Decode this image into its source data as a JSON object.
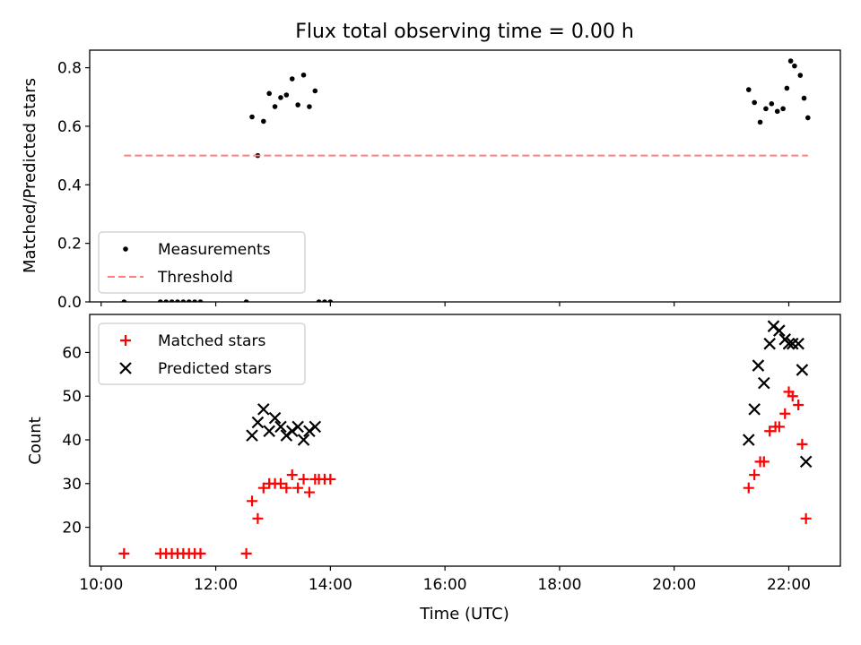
{
  "figure": {
    "title": "Flux total observing time = 0.00 h"
  },
  "chart_data": [
    {
      "type": "scatter",
      "ylabel": "Matched/Predicted stars",
      "xlabel": "",
      "xlim": [
        "09:48",
        "22:54"
      ],
      "ylim": [
        0,
        0.86
      ],
      "yticks": [
        0.0,
        0.2,
        0.4,
        0.6,
        0.8
      ],
      "ytick_labels": [
        "0.0",
        "0.2",
        "0.4",
        "0.6",
        "0.8"
      ],
      "grid": false,
      "legend_position": "lower-left",
      "series": [
        {
          "name": "Measurements",
          "marker": "dot",
          "color": "#000000",
          "points": [
            [
              "10:24",
              0.0
            ],
            [
              "11:02",
              0.0
            ],
            [
              "11:08",
              0.0
            ],
            [
              "11:14",
              0.0
            ],
            [
              "11:20",
              0.0
            ],
            [
              "11:26",
              0.0
            ],
            [
              "11:32",
              0.0
            ],
            [
              "11:38",
              0.0
            ],
            [
              "11:44",
              0.0
            ],
            [
              "12:32",
              0.0
            ],
            [
              "12:38",
              0.632
            ],
            [
              "12:44",
              0.5
            ],
            [
              "12:50",
              0.617
            ],
            [
              "12:56",
              0.712
            ],
            [
              "13:02",
              0.667
            ],
            [
              "13:08",
              0.698
            ],
            [
              "13:14",
              0.707
            ],
            [
              "13:20",
              0.762
            ],
            [
              "13:26",
              0.673
            ],
            [
              "13:32",
              0.775
            ],
            [
              "13:38",
              0.667
            ],
            [
              "13:44",
              0.721
            ],
            [
              "13:48",
              0.0
            ],
            [
              "13:54",
              0.0
            ],
            [
              "14:00",
              0.0
            ],
            [
              "21:18",
              0.725
            ],
            [
              "21:24",
              0.681
            ],
            [
              "21:30",
              0.614
            ],
            [
              "21:36",
              0.66
            ],
            [
              "21:42",
              0.677
            ],
            [
              "21:48",
              0.651
            ],
            [
              "21:54",
              0.66
            ],
            [
              "21:58",
              0.73
            ],
            [
              "22:02",
              0.823
            ],
            [
              "22:06",
              0.806
            ],
            [
              "22:12",
              0.774
            ],
            [
              "22:16",
              0.696
            ],
            [
              "22:20",
              0.629
            ]
          ]
        },
        {
          "name": "Threshold",
          "style": "dashed",
          "color": "#ff7f7f",
          "points": [
            [
              "10:24",
              0.5
            ],
            [
              "22:20",
              0.5
            ]
          ]
        }
      ]
    },
    {
      "type": "scatter",
      "ylabel": "Count",
      "xlabel": "Time (UTC)",
      "xlim": [
        "09:48",
        "22:54"
      ],
      "ylim": [
        11.1,
        68.7
      ],
      "yticks": [
        20,
        30,
        40,
        50,
        60
      ],
      "ytick_labels": [
        "20",
        "30",
        "40",
        "50",
        "60"
      ],
      "xticks": [
        "10:00",
        "12:00",
        "14:00",
        "16:00",
        "18:00",
        "20:00",
        "22:00"
      ],
      "xtick_labels": [
        "10:00",
        "12:00",
        "14:00",
        "16:00",
        "18:00",
        "20:00",
        "22:00"
      ],
      "grid": false,
      "legend_position": "upper-left",
      "series": [
        {
          "name": "Matched stars",
          "marker": "plus",
          "color": "#ff0000",
          "points": [
            [
              "10:24",
              14
            ],
            [
              "11:02",
              14
            ],
            [
              "11:08",
              14
            ],
            [
              "11:14",
              14
            ],
            [
              "11:20",
              14
            ],
            [
              "11:26",
              14
            ],
            [
              "11:32",
              14
            ],
            [
              "11:38",
              14
            ],
            [
              "11:44",
              14
            ],
            [
              "12:32",
              14
            ],
            [
              "12:38",
              26
            ],
            [
              "12:44",
              22
            ],
            [
              "12:50",
              29
            ],
            [
              "12:56",
              30
            ],
            [
              "13:02",
              30
            ],
            [
              "13:08",
              30
            ],
            [
              "13:14",
              29
            ],
            [
              "13:20",
              32
            ],
            [
              "13:26",
              29
            ],
            [
              "13:32",
              31
            ],
            [
              "13:38",
              28
            ],
            [
              "13:44",
              31
            ],
            [
              "13:48",
              31
            ],
            [
              "13:54",
              31
            ],
            [
              "14:00",
              31
            ],
            [
              "21:18",
              29
            ],
            [
              "21:24",
              32
            ],
            [
              "21:30",
              35
            ],
            [
              "21:34",
              35
            ],
            [
              "21:40",
              42
            ],
            [
              "21:46",
              43
            ],
            [
              "21:50",
              43
            ],
            [
              "21:56",
              46
            ],
            [
              "22:00",
              51
            ],
            [
              "22:04",
              50
            ],
            [
              "22:10",
              48
            ],
            [
              "22:14",
              39
            ],
            [
              "22:18",
              22
            ]
          ]
        },
        {
          "name": "Predicted stars",
          "marker": "x",
          "color": "#000000",
          "points": [
            [
              "12:38",
              41
            ],
            [
              "12:44",
              44
            ],
            [
              "12:50",
              47
            ],
            [
              "12:56",
              42
            ],
            [
              "13:02",
              45
            ],
            [
              "13:08",
              43
            ],
            [
              "13:14",
              41
            ],
            [
              "13:20",
              42
            ],
            [
              "13:26",
              43
            ],
            [
              "13:32",
              40
            ],
            [
              "13:38",
              42
            ],
            [
              "13:44",
              43
            ],
            [
              "21:18",
              40
            ],
            [
              "21:24",
              47
            ],
            [
              "21:28",
              57
            ],
            [
              "21:34",
              53
            ],
            [
              "21:40",
              62
            ],
            [
              "21:44",
              66
            ],
            [
              "21:50",
              65
            ],
            [
              "21:56",
              63
            ],
            [
              "22:00",
              62
            ],
            [
              "22:04",
              62
            ],
            [
              "22:10",
              62
            ],
            [
              "22:14",
              56
            ],
            [
              "22:18",
              35
            ]
          ]
        }
      ]
    }
  ]
}
